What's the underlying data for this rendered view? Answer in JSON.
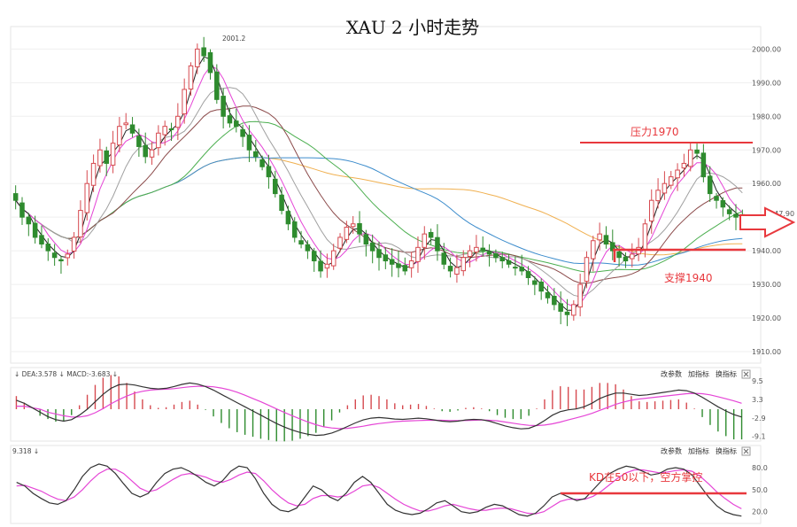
{
  "chart_data": [
    {
      "type": "candlestick",
      "title": "XAU 2 小时走势",
      "ylim": [
        1910,
        2003
      ],
      "y_ticks": [
        2000,
        1990,
        1980,
        1970,
        1960,
        1950,
        1940,
        1930,
        1920,
        1910
      ],
      "y_tick_labels": [
        "2000.00",
        "1990.00",
        "1980.00",
        "1970.00",
        "1960.00",
        "1950.00",
        "1940.00",
        "1930.00",
        "1920.00",
        "1910.00"
      ],
      "current_price_label": "1947.90",
      "high_label": "2001.2",
      "close_series": [
        1955,
        1950,
        1948,
        1944,
        1942,
        1940,
        1938,
        1937,
        1939,
        1944,
        1952,
        1960,
        1966,
        1970,
        1966,
        1972,
        1977,
        1978,
        1975,
        1971,
        1968,
        1970,
        1975,
        1977,
        1976,
        1980,
        1988,
        1995,
        2000,
        1998,
        1993,
        1985,
        1980,
        1978,
        1977,
        1974,
        1970,
        1968,
        1965,
        1962,
        1957,
        1952,
        1948,
        1944,
        1942,
        1940,
        1937,
        1934,
        1936,
        1940,
        1944,
        1947,
        1948,
        1945,
        1942,
        1940,
        1938,
        1937,
        1936,
        1935,
        1934,
        1937,
        1941,
        1945,
        1944,
        1940,
        1936,
        1934,
        1935,
        1938,
        1940,
        1941,
        1940,
        1939,
        1938,
        1937,
        1936,
        1935,
        1934,
        1932,
        1930,
        1928,
        1926,
        1924,
        1922,
        1921,
        1924,
        1930,
        1938,
        1943,
        1945,
        1942,
        1940,
        1938,
        1937,
        1939,
        1941,
        1948,
        1955,
        1958,
        1960,
        1962,
        1964,
        1966,
        1970,
        1969,
        1962,
        1957,
        1955,
        1953,
        1951,
        1950,
        1948
      ],
      "annotations": [
        {
          "label": "压力1970",
          "value": 1970
        },
        {
          "label": "支撑1940",
          "value": 1940
        }
      ]
    },
    {
      "type": "line",
      "indicator": "MACD",
      "header_text": "↓ DEA:3.578 ↓ MACD:-3.683 ↓",
      "y_ticks": [
        9.5,
        3.3,
        -2.9,
        -9.1
      ],
      "y_tick_labels": [
        "9.5",
        "3.3",
        "-2.9",
        "-9.1"
      ],
      "dif": [
        3,
        2,
        0.5,
        -1,
        -2.5,
        -3.5,
        -4,
        -3.5,
        -2,
        0,
        2.5,
        5,
        7,
        8.2,
        8.4,
        8.1,
        7.5,
        7,
        6.8,
        7,
        7.6,
        8.3,
        8.8,
        8.4,
        7.6,
        6.4,
        5,
        3.6,
        2.2,
        0.8,
        -0.6,
        -2,
        -3.4,
        -4.8,
        -6,
        -7,
        -7.8,
        -8.4,
        -8.8,
        -8.6,
        -8,
        -7,
        -5.8,
        -4.6,
        -3.6,
        -3,
        -2.8,
        -3,
        -3.3,
        -3.4,
        -3.2,
        -3,
        -3.2,
        -3.6,
        -4,
        -4.2,
        -4,
        -3.6,
        -3.4,
        -3.5,
        -4,
        -4.8,
        -5.6,
        -6.2,
        -6.6,
        -6.4,
        -5.4,
        -3.8,
        -2,
        -0.8,
        -0.2,
        0.1,
        0.8,
        2,
        3.6,
        4.6,
        5.4,
        5.4,
        5,
        4.6,
        4.8,
        5.2,
        5.6,
        6,
        6.4,
        6.2,
        5.4,
        4,
        2.4,
        0.8,
        -0.6,
        -1.8,
        -2.6
      ],
      "dea": [
        1,
        1,
        0.5,
        0,
        -1,
        -1.6,
        -2.2,
        -2.6,
        -2.6,
        -2.2,
        -1.2,
        0.2,
        1.8,
        3.2,
        4.4,
        5.4,
        6,
        6.4,
        6.6,
        6.7,
        6.9,
        7.2,
        7.5,
        7.7,
        7.7,
        7.5,
        7.1,
        6.5,
        5.7,
        4.7,
        3.6,
        2.5,
        1.3,
        0.1,
        -1.1,
        -2.2,
        -3.3,
        -4.3,
        -5.2,
        -5.9,
        -6.3,
        -6.5,
        -6.4,
        -6.1,
        -5.7,
        -5.2,
        -4.8,
        -4.5,
        -4.2,
        -4,
        -3.9,
        -3.8,
        -3.7,
        -3.7,
        -3.7,
        -3.8,
        -3.8,
        -3.8,
        -3.7,
        -3.6,
        -3.7,
        -3.9,
        -4.3,
        -4.7,
        -5.1,
        -5.4,
        -5.5,
        -5.3,
        -4.9,
        -4.3,
        -3.6,
        -2.9,
        -2.2,
        -1.4,
        -0.4,
        0.6,
        1.6,
        2.4,
        3,
        3.4,
        3.7,
        4,
        4.3,
        4.6,
        4.9,
        5.2,
        5.3,
        5.2,
        4.8,
        4.2,
        3.5,
        2.8,
        2
      ]
    },
    {
      "type": "line",
      "indicator": "KD",
      "header_text": "9.318 ↓",
      "y_ticks": [
        80,
        50,
        20
      ],
      "y_tick_labels": [
        "80.0",
        "50.0",
        "20.0"
      ],
      "k": [
        60,
        55,
        45,
        38,
        32,
        30,
        35,
        50,
        68,
        80,
        85,
        82,
        72,
        58,
        45,
        40,
        45,
        60,
        72,
        78,
        80,
        75,
        68,
        60,
        55,
        62,
        75,
        82,
        80,
        65,
        45,
        30,
        22,
        20,
        25,
        40,
        55,
        50,
        40,
        35,
        45,
        60,
        68,
        60,
        45,
        30,
        22,
        18,
        16,
        18,
        24,
        32,
        35,
        28,
        20,
        18,
        20,
        26,
        30,
        28,
        22,
        16,
        14,
        18,
        28,
        40,
        45,
        40,
        35,
        38,
        50,
        62,
        72,
        78,
        82,
        80,
        75,
        70,
        72,
        78,
        80,
        78,
        70,
        55,
        40,
        28,
        20,
        16,
        14
      ],
      "d": [
        55,
        56,
        52,
        48,
        42,
        37,
        35,
        40,
        50,
        62,
        72,
        78,
        78,
        72,
        62,
        52,
        47,
        50,
        57,
        64,
        70,
        72,
        70,
        67,
        62,
        60,
        64,
        70,
        74,
        72,
        62,
        50,
        40,
        32,
        28,
        30,
        38,
        42,
        42,
        40,
        42,
        48,
        55,
        57,
        53,
        45,
        37,
        30,
        25,
        21,
        21,
        24,
        28,
        30,
        27,
        24,
        22,
        22,
        24,
        25,
        24,
        21,
        18,
        17,
        20,
        27,
        34,
        37,
        37,
        37,
        41,
        48,
        57,
        66,
        73,
        77,
        77,
        75,
        73,
        74,
        76,
        77,
        75,
        68,
        58,
        47,
        38,
        30,
        24
      ],
      "annotation": "KD在50以下，空方掌控"
    }
  ],
  "buttons": {
    "params": "改参数",
    "add_indicator": "加指标",
    "switch_indicator": "换指标"
  },
  "colors": {
    "up": "#d6494f",
    "down": "#2e8b2e",
    "pink": "#e545d6",
    "black": "#333333",
    "ma_brown": "#8b4a4a",
    "ma_green": "#4caf50",
    "ma_blue": "#3c8ccc",
    "ma_orange": "#f0b050",
    "ma_gray": "#a0a0a0",
    "annotation": "#e8383d"
  },
  "icons": {
    "arrow": "right-arrow-outline-icon",
    "close": "close-icon"
  }
}
